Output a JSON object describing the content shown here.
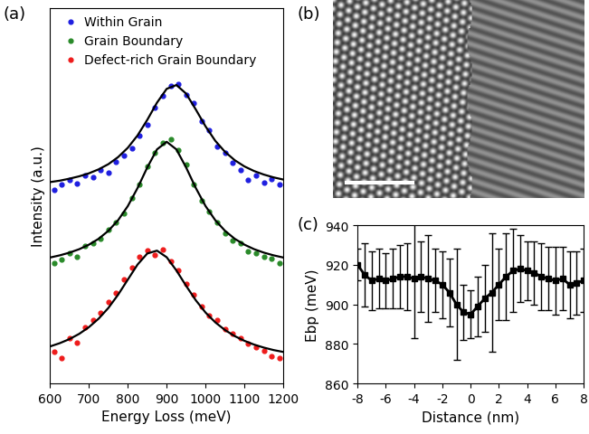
{
  "chart_data": [
    {
      "type": "scatter",
      "panel_label": "(a)",
      "xlabel": "Energy Loss (meV)",
      "ylabel": "Intensity (a.u.)",
      "xlim": [
        600,
        1200
      ],
      "xticks": [
        600,
        700,
        800,
        900,
        1000,
        1100,
        1200
      ],
      "ylim": [
        0,
        4.15
      ],
      "tick_labels": "x",
      "legend": "upper left",
      "series": [
        {
          "name": "Within Grain",
          "color": "#1f1fe0",
          "marker": "o",
          "x": [
            610,
            630,
            650,
            670,
            690,
            710,
            730,
            750,
            770,
            790,
            810,
            830,
            850,
            870,
            890,
            910,
            930,
            950,
            970,
            990,
            1010,
            1030,
            1050,
            1070,
            1090,
            1110,
            1130,
            1150,
            1170,
            1190
          ],
          "values": [
            2.14,
            2.2,
            2.25,
            2.21,
            2.3,
            2.28,
            2.36,
            2.33,
            2.45,
            2.52,
            2.6,
            2.74,
            2.86,
            3.05,
            3.18,
            3.29,
            3.31,
            3.19,
            3.1,
            2.9,
            2.8,
            2.62,
            2.55,
            2.44,
            2.36,
            2.25,
            2.3,
            2.22,
            2.26,
            2.2
          ],
          "fit": {
            "x": [
              600,
              625,
              650,
              675,
              700,
              725,
              750,
              775,
              800,
              825,
              850,
              875,
              900,
              925,
              950,
              975,
              1000,
              1025,
              1050,
              1075,
              1100,
              1125,
              1150,
              1175,
              1200
            ],
            "values": [
              2.225,
              2.241,
              2.263,
              2.289,
              2.322,
              2.366,
              2.423,
              2.501,
              2.604,
              2.74,
              2.912,
              3.102,
              3.255,
              3.297,
              3.202,
              3.026,
              2.84,
              2.681,
              2.559,
              2.467,
              2.398,
              2.347,
              2.308,
              2.277,
              2.253
            ]
          }
        },
        {
          "name": "Grain Boundary",
          "color": "#2a8a2a",
          "marker": "o",
          "x": [
            610,
            630,
            650,
            670,
            690,
            710,
            730,
            750,
            770,
            790,
            810,
            830,
            850,
            870,
            890,
            910,
            930,
            950,
            970,
            990,
            1010,
            1030,
            1050,
            1070,
            1090,
            1110,
            1130,
            1150,
            1170,
            1190
          ],
          "values": [
            1.33,
            1.37,
            1.44,
            1.4,
            1.52,
            1.55,
            1.6,
            1.7,
            1.78,
            1.88,
            2.05,
            2.2,
            2.4,
            2.55,
            2.66,
            2.7,
            2.58,
            2.42,
            2.2,
            2.02,
            1.9,
            1.78,
            1.66,
            1.58,
            1.55,
            1.46,
            1.44,
            1.4,
            1.38,
            1.33
          ],
          "fit": {
            "x": [
              600,
              625,
              650,
              675,
              700,
              725,
              750,
              775,
              800,
              825,
              850,
              875,
              900,
              925,
              950,
              975,
              1000,
              1025,
              1050,
              1075,
              1100,
              1125,
              1150,
              1175,
              1200
            ],
            "values": [
              1.392,
              1.416,
              1.446,
              1.484,
              1.534,
              1.599,
              1.687,
              1.804,
              1.96,
              2.159,
              2.386,
              2.586,
              2.67,
              2.586,
              2.386,
              2.159,
              1.96,
              1.804,
              1.687,
              1.599,
              1.534,
              1.484,
              1.446,
              1.416,
              1.392
            ]
          }
        },
        {
          "name": "Defect-rich Grain Boundary",
          "color": "#ee1c1c",
          "marker": "o",
          "x": [
            610,
            630,
            650,
            670,
            690,
            710,
            730,
            750,
            770,
            790,
            810,
            830,
            850,
            870,
            890,
            910,
            930,
            950,
            970,
            990,
            1010,
            1030,
            1050,
            1070,
            1090,
            1110,
            1130,
            1150,
            1170,
            1190
          ],
          "values": [
            0.35,
            0.28,
            0.5,
            0.45,
            0.62,
            0.7,
            0.78,
            0.9,
            1.0,
            1.15,
            1.28,
            1.4,
            1.47,
            1.42,
            1.48,
            1.35,
            1.25,
            1.1,
            0.98,
            0.85,
            0.75,
            0.7,
            0.6,
            0.55,
            0.5,
            0.44,
            0.4,
            0.36,
            0.3,
            0.28
          ],
          "fit": {
            "x": [
              600,
              625,
              650,
              675,
              700,
              725,
              750,
              775,
              800,
              825,
              850,
              875,
              900,
              925,
              950,
              975,
              1000,
              1025,
              1050,
              1075,
              1100,
              1125,
              1150,
              1175,
              1200
            ],
            "values": [
              0.41,
              0.446,
              0.491,
              0.549,
              0.623,
              0.717,
              0.835,
              0.981,
              1.148,
              1.314,
              1.436,
              1.468,
              1.395,
              1.249,
              1.079,
              0.919,
              0.784,
              0.676,
              0.591,
              0.524,
              0.472,
              0.43,
              0.397,
              0.37,
              0.349
            ]
          }
        }
      ]
    },
    {
      "type": "image",
      "panel_label": "(b)"
    },
    {
      "type": "line",
      "panel_label": "(c)",
      "xlabel": "Distance (nm)",
      "ylabel": "Ebp (meV)",
      "xlim": [
        -8,
        8
      ],
      "xticks": [
        -8,
        -6,
        -4,
        -2,
        0,
        2,
        4,
        6,
        8
      ],
      "ylim": [
        860,
        940
      ],
      "yticks": [
        860,
        880,
        900,
        920,
        940
      ],
      "color": "#000000",
      "marker": "s",
      "x": [
        -8,
        -7.5,
        -7,
        -6.5,
        -6,
        -5.5,
        -5,
        -4.5,
        -4,
        -3.5,
        -3,
        -2.5,
        -2,
        -1.5,
        -1,
        -0.5,
        0,
        0.5,
        1,
        1.5,
        2,
        2.5,
        3,
        3.5,
        4,
        4.5,
        5,
        5.5,
        6,
        6.5,
        7,
        7.5,
        8
      ],
      "values": [
        920,
        915,
        912,
        913,
        912,
        913,
        914,
        914,
        913,
        914,
        913,
        912,
        910,
        906,
        900,
        896,
        895,
        899,
        903,
        906,
        910,
        914,
        917,
        918,
        917,
        916,
        914,
        913,
        912,
        913,
        910,
        911,
        912
      ],
      "errors": [
        8,
        16,
        15,
        15,
        14,
        15,
        16,
        17,
        30,
        18,
        22,
        16,
        17,
        17,
        28,
        14,
        12,
        15,
        17,
        30,
        18,
        22,
        21,
        17,
        15,
        16,
        17,
        16,
        17,
        16,
        17,
        16,
        16
      ]
    }
  ]
}
